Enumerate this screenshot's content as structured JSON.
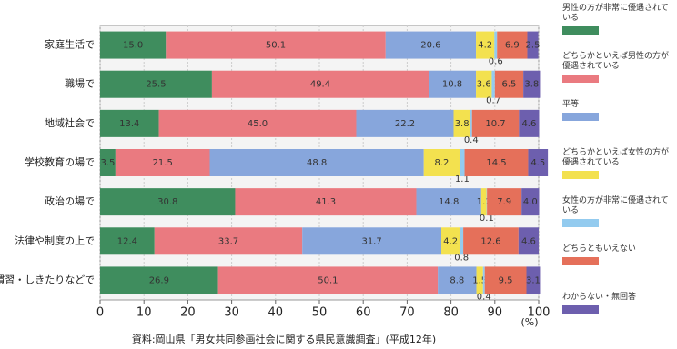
{
  "chart_data": {
    "type": "stacked-bar-horizontal",
    "categories": [
      "家庭生活で",
      "職場で",
      "地域社会で",
      "学校教育の場で",
      "政治の場で",
      "法律や制度の上で",
      "社会通念・慣習・しきたりなどで"
    ],
    "series": [
      {
        "name": "男性の方が非常に優遇されている",
        "color": "#3f8d5e",
        "values": [
          15.0,
          25.5,
          13.4,
          3.5,
          30.8,
          12.4,
          26.9
        ],
        "value_labels": [
          "15.0",
          "25.5",
          "13.4",
          "3.5",
          "30.8",
          "12.4",
          "26.9"
        ]
      },
      {
        "name": "どちらかといえば男性の方が優遇されている",
        "color": "#ea7a80",
        "values": [
          50.1,
          49.4,
          45.0,
          21.5,
          41.3,
          33.7,
          50.1
        ],
        "value_labels": [
          "50.1",
          "49.4",
          "45.0",
          "21.5",
          "41.3",
          "33.7",
          "50.1"
        ]
      },
      {
        "name": "平等",
        "color": "#87a6dc",
        "values": [
          20.6,
          10.8,
          22.2,
          48.8,
          14.8,
          31.7,
          8.8
        ],
        "value_labels": [
          "20.6",
          "10.8",
          "22.2",
          "48.8",
          "14.8",
          "31.7",
          "8.8"
        ]
      },
      {
        "name": "どちらかといえば女性の方が優遇されている",
        "color": "#f3e14f",
        "values": [
          4.2,
          3.6,
          3.8,
          8.2,
          1.2,
          4.2,
          1.5
        ],
        "value_labels": [
          "4.2",
          "3.6",
          "3.8",
          "8.2",
          "1.2",
          "4.2",
          "1.5"
        ]
      },
      {
        "name": "女性の方が非常に優遇されている",
        "color": "#93cbef",
        "values": [
          0.6,
          0.7,
          0.4,
          1.1,
          0.1,
          0.8,
          0.4
        ],
        "value_labels": [
          "0.6",
          "0.7",
          "0.4",
          "1.1",
          "0.1",
          "0.8",
          "0.4"
        ]
      },
      {
        "name": "どちらともいえない",
        "color": "#e5705a",
        "values": [
          6.9,
          6.5,
          10.7,
          14.5,
          7.9,
          12.6,
          9.5
        ],
        "value_labels": [
          "6.9",
          "6.5",
          "10.7",
          "14.5",
          "7.9",
          "12.6",
          "9.5"
        ]
      },
      {
        "name": "わからない・無回答",
        "color": "#6d5fae",
        "values": [
          2.5,
          3.8,
          4.6,
          4.5,
          4.0,
          4.6,
          3.1
        ],
        "value_labels": [
          "2.5",
          "3.8",
          "4.6",
          "4.5",
          "4.0",
          "4.6",
          "3.1"
        ]
      }
    ],
    "xlim": [
      0,
      100
    ],
    "xticks": [
      0,
      10,
      20,
      30,
      40,
      50,
      60,
      70,
      80,
      90,
      100
    ],
    "x_unit": "(%)",
    "source": "資料:岡山県「男女共同参画社会に関する県民意識調査」(平成12年)"
  }
}
